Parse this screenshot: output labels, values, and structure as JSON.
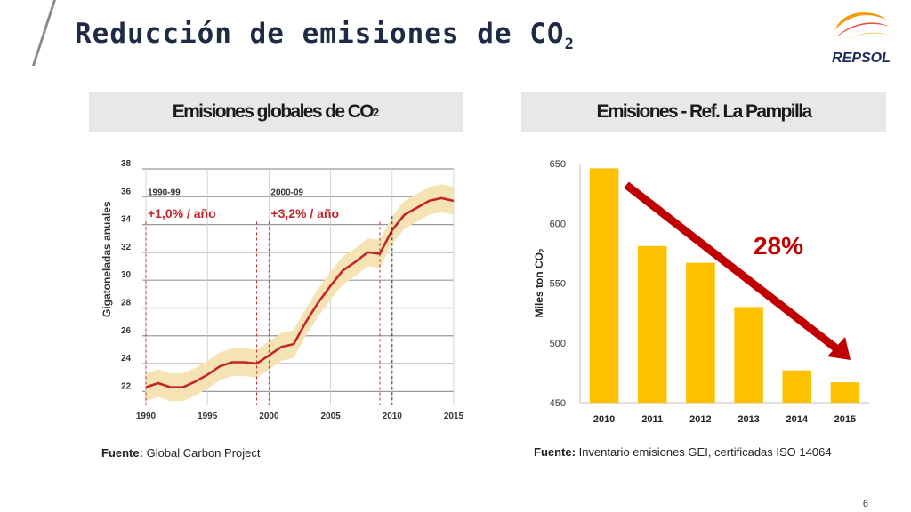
{
  "slide": {
    "title": "Reducción de emisiones de CO",
    "title_sub": "2",
    "page_number": "6",
    "logo_text": "REPSOL"
  },
  "left_panel": {
    "heading": "Emisiones globales de CO",
    "heading_sub": "2",
    "source_label": "Fuente:",
    "source_text": "Global Carbon Project"
  },
  "right_panel": {
    "heading": "Emisiones - Ref. La Pampilla",
    "source_label": "Fuente:",
    "source_text": "Inventario emisiones GEI, certificadas ISO 14064"
  },
  "chart_data": [
    {
      "type": "line",
      "title": "",
      "ylabel": "Gigatoneladas anuales",
      "xlabel": "",
      "x_ticks": [
        "1990",
        "1995",
        "2000",
        "2005",
        "2010",
        "2015"
      ],
      "y_ticks": [
        "22",
        "24",
        "26",
        "28",
        "30",
        "32",
        "34",
        "36",
        "38"
      ],
      "xlim": [
        1990,
        2015
      ],
      "ylim": [
        21,
        38
      ],
      "grid": true,
      "series": [
        {
          "x": [
            1990,
            1991,
            1992,
            1993,
            1994,
            1995,
            1996,
            1997,
            1998,
            1999,
            2000,
            2001,
            2002,
            2003,
            2004,
            2005,
            2006,
            2007,
            2008,
            2009,
            2010,
            2011,
            2012,
            2013,
            2014,
            2015
          ],
          "y": [
            22.3,
            22.6,
            22.3,
            22.3,
            22.7,
            23.2,
            23.8,
            24.1,
            24.1,
            24.0,
            24.6,
            25.2,
            25.4,
            27.0,
            28.4,
            29.6,
            30.7,
            31.3,
            32.0,
            31.9,
            33.6,
            34.7,
            35.2,
            35.7,
            35.9,
            35.7
          ],
          "band": 1.0
        }
      ],
      "annotations": [
        {
          "period": "1990-99",
          "rate": "+1,0% / año"
        },
        {
          "period": "2000-09",
          "rate": "+3,2% / año"
        }
      ],
      "colors": {
        "line": "#c0272d",
        "band": "#f6e3b4",
        "grid": "#999999",
        "marker": "#c0272d"
      }
    },
    {
      "type": "bar",
      "title": "",
      "ylabel": "Miles ton CO",
      "ylabel_sub": "2",
      "categories": [
        "2010",
        "2011",
        "2012",
        "2013",
        "2014",
        "2015"
      ],
      "values": [
        646,
        581,
        567,
        530,
        477,
        467
      ],
      "y_ticks": [
        "450",
        "500",
        "550",
        "600",
        "650"
      ],
      "ylim": [
        450,
        650
      ],
      "annotation": "28%",
      "colors": {
        "bar": "#ffc000",
        "arrow": "#c00000"
      }
    }
  ]
}
